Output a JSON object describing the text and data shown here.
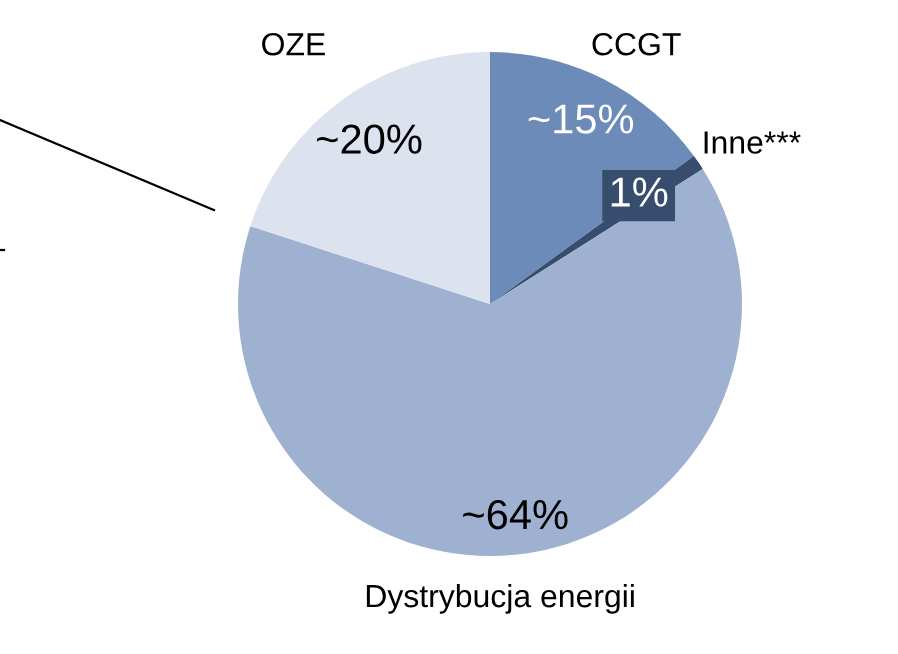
{
  "chart_data": {
    "type": "pie",
    "categories": [
      "CCGT",
      "Inne***",
      "Dystrybucja energii",
      "OZE"
    ],
    "values": [
      15,
      1,
      64,
      20
    ],
    "colors": [
      "#6c8bb8",
      "#364d6e",
      "#9fb1d0",
      "#dde3ee"
    ],
    "value_labels": [
      "~15%",
      "1%",
      "~64%",
      "~20%"
    ]
  }
}
